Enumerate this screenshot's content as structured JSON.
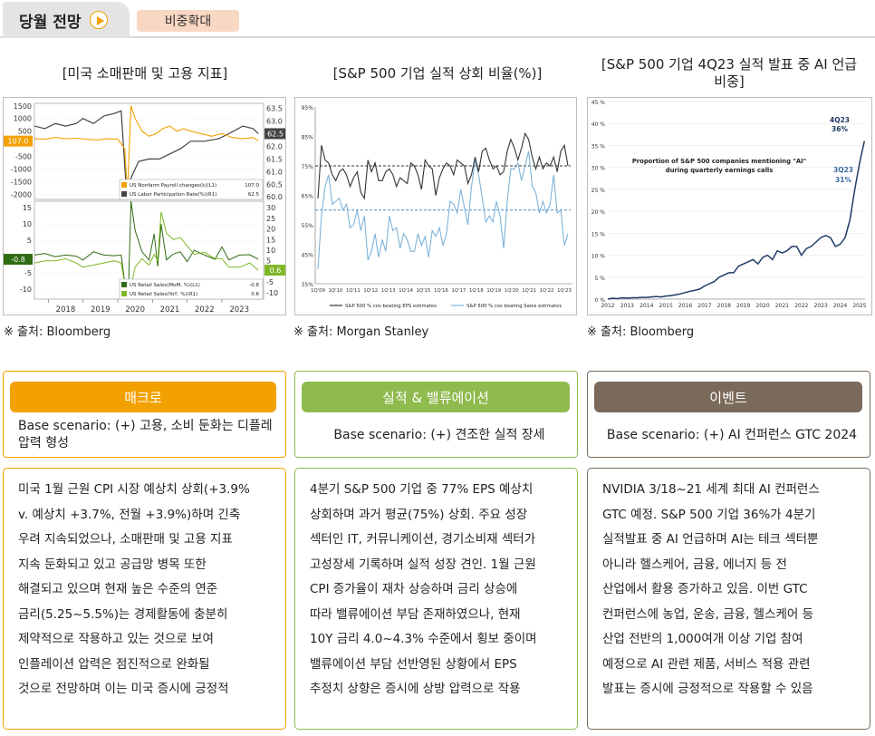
{
  "header": {
    "month_title": "당월 전망",
    "badge": "비중확대"
  },
  "charts": {
    "macro": {
      "title": "[미국 소매판매 및 고용 지표]",
      "source": "※ 출처: Bloomberg",
      "top": {
        "left_ticks": [
          "1500",
          "1000",
          "500",
          "-500",
          "-1000",
          "-1500",
          "-2000"
        ],
        "right_ticks": [
          "63.5",
          "63.0",
          "62.5",
          "62.0",
          "61.5",
          "61.0",
          "60.5",
          "60.0"
        ],
        "last_left": "107.0",
        "last_right": "62.5",
        "legend": [
          {
            "label": "US Nonfarm Payroll changes(k)(L1)",
            "value": "107.0",
            "color": "#f3a100"
          },
          {
            "label": "US Labor Participation Rate(%)(R1)",
            "value": "62.5",
            "color": "#444444"
          }
        ]
      },
      "bottom": {
        "left_ticks": [
          "15",
          "10",
          "5",
          "0",
          "-5",
          "-10"
        ],
        "right_ticks": [
          "30",
          "25",
          "20",
          "15",
          "10",
          "5",
          "0",
          "-5",
          "-10"
        ],
        "last_left": "-0.8",
        "last_right": "0.6",
        "legend": [
          {
            "label": "US Retail Sales(MoM, %)(L1)",
            "value": "-0.8",
            "color": "#2e6b12"
          },
          {
            "label": "US Retail Sales(YoY, %)(R1)",
            "value": "0.6",
            "color": "#7fb827"
          }
        ]
      },
      "years": [
        "2018",
        "2019",
        "2020",
        "2021",
        "2022",
        "2023"
      ]
    },
    "earnings": {
      "title": "[S&P 500 기업 실적 상회 비율(%)]",
      "source": "※ 출처: Morgan Stanley",
      "y_ticks": [
        "95%",
        "85%",
        "75%",
        "65%",
        "55%",
        "45%",
        "35%"
      ],
      "x_ticks": [
        "1Q'09",
        "1Q'10",
        "1Q'11",
        "1Q'12",
        "1Q'13",
        "1Q'14",
        "1Q'15",
        "1Q'16",
        "1Q'17",
        "1Q'18",
        "1Q'19",
        "1Q'20",
        "1Q'21",
        "1Q'22",
        "1Q'23"
      ],
      "legend": [
        "S&P 500 % cos beating EPS estimates",
        "S&P 500 % cos beating Sales estimates"
      ],
      "eps_avg": 75,
      "sales_avg": 60,
      "eps": [
        64,
        82,
        77,
        76,
        72,
        70,
        73,
        74,
        72,
        68,
        71,
        73,
        66,
        64,
        77,
        73,
        76,
        70,
        70,
        73,
        74,
        72,
        68,
        71,
        70,
        69,
        76,
        75,
        72,
        67,
        77,
        75,
        74,
        65,
        71,
        74,
        76,
        75,
        72,
        77,
        76,
        75,
        69,
        72,
        78,
        73,
        80,
        81,
        77,
        74,
        75,
        72,
        73,
        80,
        84,
        81,
        77,
        81,
        86,
        84,
        78,
        74,
        78,
        74,
        76,
        75,
        78,
        73,
        80,
        82,
        75
      ],
      "sales": [
        40,
        58,
        68,
        72,
        62,
        63,
        64,
        60,
        62,
        54,
        55,
        60,
        53,
        58,
        43,
        46,
        52,
        44,
        50,
        46,
        58,
        53,
        54,
        47,
        52,
        50,
        46,
        46,
        52,
        48,
        51,
        44,
        53,
        51,
        54,
        48,
        52,
        63,
        62,
        59,
        67,
        61,
        55,
        68,
        77,
        72,
        64,
        56,
        58,
        56,
        63,
        58,
        47,
        63,
        74,
        74,
        76,
        70,
        75,
        80,
        68,
        66,
        59,
        63,
        59,
        62,
        72,
        59,
        60,
        48,
        52
      ]
    },
    "ai": {
      "title": "[S&P 500 기업 4Q23 실적 발표 중 AI 언급 비중]",
      "source": "※ 출처: Bloomberg",
      "annotation_title": "Proportion of S&P 500 companies mentioning \"AI\" during quarterly earnings calls",
      "label_4q23": "4Q23 36%",
      "label_3q23": "3Q23 31%",
      "y_ticks": [
        "45 %",
        "40 %",
        "35 %",
        "30 %",
        "25 %",
        "20 %",
        "15 %",
        "10 %",
        "5 %",
        "0 %"
      ],
      "x_ticks": [
        "2012",
        "2013",
        "2014",
        "2015",
        "2016",
        "2017",
        "2018",
        "2019",
        "2020",
        "2021",
        "2022",
        "2023",
        "2024",
        "2025"
      ],
      "values": [
        0,
        0.2,
        0.1,
        0.3,
        0.2,
        0.3,
        0.3,
        0.4,
        0.4,
        0.5,
        0.6,
        0.5,
        0.7,
        0.8,
        1,
        1.2,
        1.5,
        1.8,
        2,
        2.3,
        3,
        3.5,
        4,
        5,
        5.5,
        6,
        6,
        7.5,
        8,
        8.5,
        9,
        8,
        9.5,
        10,
        9,
        11,
        10.5,
        11,
        12,
        12,
        10,
        11.5,
        12,
        13,
        14,
        14.5,
        14,
        12,
        12.5,
        14,
        18,
        25,
        31,
        36
      ]
    }
  },
  "panels": [
    {
      "header": "매크로",
      "scenario": "Base scenario: (+) 고용, 소비 둔화는 디플레 압력 형성",
      "body_lines": [
        "미국 1월 근원 CPI 시장 예상치 상회(+3.9%",
        "v. 예상치 +3.7%, 전월 +3.9%)하며 긴축",
        "우려 지속되었으나, 소매판매 및 고용 지표",
        "지속 둔화되고 있고 공급망 병목 또한",
        "해결되고 있으며 현재 높은 수준의 연준",
        "금리(5.25~5.5%)는 경제활동에 충분히",
        "제약적으로 작용하고 있는 것으로 보여",
        "인플레이션 압력은 점진적으로 완화될",
        "것으로 전망하며 이는 미국 증시에 긍정적"
      ]
    },
    {
      "header": "실적 & 밸류에이션",
      "scenario": "Base scenario: (+) 견조한 실적 장세",
      "body_lines": [
        "4분기 S&P 500 기업 중 77% EPS 예상치",
        "상회하며 과거 평균(75%) 상회. 주요 성장",
        "섹터인 IT, 커뮤니케이션, 경기소비재 섹터가",
        "고성장세 기록하며 실적 성장 견인. 1월 근원",
        "CPI 증가율이 재차 상승하며 금리 상승에",
        "따라 밸류에이션 부담 존재하였으나, 현재",
        "10Y 금리 4.0~4.3% 수준에서 횡보 중이며",
        "밸류에이션 부담 선반영된 상황에서 EPS",
        "추정치 상향은 증시에 상방 압력으로 작용"
      ]
    },
    {
      "header": "이벤트",
      "scenario": "Base scenario: (+) AI 컨퍼런스 GTC 2024",
      "body_lines": [
        "NVIDIA 3/18~21 세계 최대 AI 컨퍼런스",
        "GTC 예정. S&P 500 기업 36%가 4분기",
        "실적발표 중 AI 언급하며 AI는 테크 섹터뿐",
        "아니라 헬스케어, 금융, 에너지 등 전",
        "산업에서 활용 증가하고 있음. 이번 GTC",
        "컨퍼런스에 농업, 운송, 금융, 헬스케어 등",
        "산업 전반의 1,000여개 이상 기업 참여",
        "예정으로 AI 관련 제품, 서비스 적용 관련",
        "발표는 증시에 긍정적으로 작용할 수 있음"
      ]
    }
  ],
  "colors": {
    "macro": "#f3a100",
    "earnings": "#8fba4e",
    "event": "#7a6a5b",
    "eps_line": "#333333",
    "sales_line": "#7fb3d8",
    "ai_line": "#1f3b66"
  }
}
